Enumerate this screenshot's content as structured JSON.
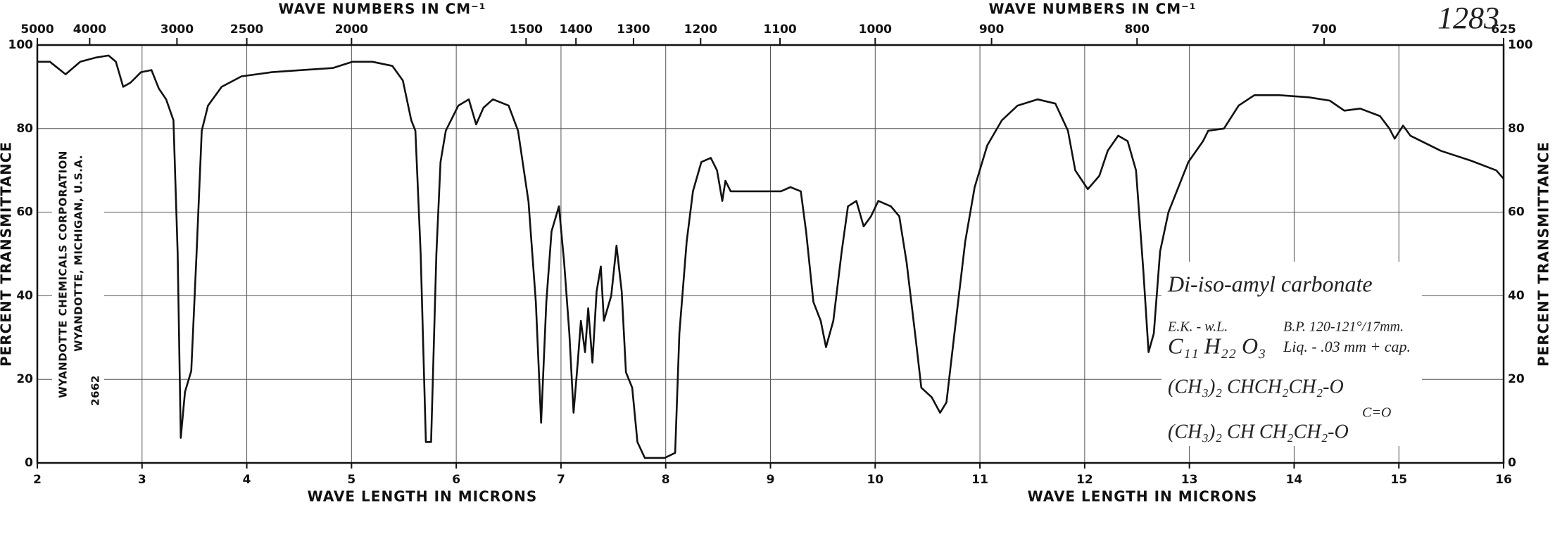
{
  "chart_data": {
    "type": "line",
    "x_label": "WAVE LENGTH IN MICRONS",
    "x2_label": "WAVE NUMBERS IN CM⁻¹",
    "y_label": "PERCENT TRANSMITTANCE",
    "xlim": [
      2,
      16
    ],
    "xticks": [
      2,
      3,
      4,
      5,
      6,
      7,
      8,
      9,
      10,
      11,
      12,
      13,
      14,
      15,
      16
    ],
    "x2lim": [
      5000,
      625
    ],
    "x2ticks": [
      5000,
      4000,
      3000,
      2500,
      2000,
      1500,
      1400,
      1300,
      1200,
      1100,
      1000,
      900,
      800,
      700,
      625
    ],
    "ylim": [
      0,
      100
    ],
    "yticks": [
      0,
      20,
      40,
      60,
      80,
      100
    ],
    "grid": true,
    "color": "#111111",
    "x": [
      2.0,
      2.12,
      2.27,
      2.41,
      2.56,
      2.68,
      2.75,
      2.82,
      2.89,
      2.99,
      3.09,
      3.16,
      3.23,
      3.3,
      3.34,
      3.37,
      3.41,
      3.47,
      3.52,
      3.57,
      3.63,
      3.76,
      3.95,
      4.24,
      4.53,
      4.82,
      5.01,
      5.2,
      5.39,
      5.49,
      5.57,
      5.61,
      5.66,
      5.71,
      5.76,
      5.81,
      5.85,
      5.9,
      6.02,
      6.12,
      6.19,
      6.26,
      6.35,
      6.5,
      6.59,
      6.69,
      6.76,
      6.81,
      6.86,
      6.91,
      6.98,
      7.03,
      7.08,
      7.12,
      7.16,
      7.19,
      7.23,
      7.26,
      7.3,
      7.34,
      7.38,
      7.41,
      7.48,
      7.53,
      7.58,
      7.62,
      7.68,
      7.73,
      7.8,
      7.99,
      8.09,
      8.13,
      8.2,
      8.26,
      8.34,
      8.43,
      8.49,
      8.54,
      8.57,
      8.62,
      8.72,
      8.96,
      9.1,
      9.19,
      9.29,
      9.34,
      9.41,
      9.48,
      9.53,
      9.6,
      9.68,
      9.74,
      9.82,
      9.89,
      9.96,
      10.03,
      10.15,
      10.23,
      10.3,
      10.39,
      10.44,
      10.54,
      10.62,
      10.68,
      10.78,
      10.86,
      10.95,
      11.07,
      11.21,
      11.36,
      11.55,
      11.72,
      11.84,
      11.91,
      12.03,
      12.14,
      12.22,
      12.32,
      12.41,
      12.49,
      12.56,
      12.61,
      12.66,
      12.72,
      12.8,
      12.99,
      13.13,
      13.18,
      13.33,
      13.47,
      13.62,
      13.86,
      14.14,
      14.34,
      14.48,
      14.63,
      14.82,
      14.91,
      14.96,
      15.04,
      15.11,
      15.4,
      15.69,
      15.93,
      16.0
    ],
    "values": [
      96,
      96,
      93,
      96,
      97,
      97.5,
      96,
      90,
      91,
      93.5,
      94,
      89.6,
      87,
      82,
      50,
      6,
      17,
      22,
      50,
      79.5,
      85.5,
      90,
      92.5,
      93.5,
      94,
      94.5,
      96,
      96,
      95,
      91.5,
      82,
      79.5,
      50,
      5,
      5,
      50,
      72,
      79.5,
      85.5,
      87,
      81,
      85,
      87,
      85.5,
      79.5,
      62.5,
      38.5,
      9.6,
      38.5,
      55.4,
      61.4,
      48,
      31,
      12,
      24,
      34,
      26.5,
      37,
      24,
      41,
      47,
      34,
      40,
      52,
      41,
      21.7,
      18,
      5,
      1.2,
      1.2,
      2.4,
      31,
      53,
      65,
      72,
      73,
      70,
      62.7,
      67.5,
      65,
      65,
      65,
      65,
      66,
      65,
      55.4,
      38.5,
      34,
      27.7,
      34,
      50.6,
      61.4,
      62.7,
      56.6,
      59,
      62.7,
      61.4,
      59,
      48,
      29,
      18,
      15.7,
      12,
      14.5,
      36,
      53,
      66,
      76,
      82,
      85.5,
      87,
      86,
      79.5,
      70,
      65.5,
      68.7,
      74.7,
      78.3,
      77,
      70,
      46,
      26.5,
      31,
      50.6,
      60,
      72,
      77,
      79.5,
      80,
      85.5,
      88,
      88,
      87.5,
      86.7,
      84.3,
      84.8,
      83,
      80,
      77.6,
      80.7,
      78.3,
      74.7,
      72.3,
      70,
      68
    ],
    "annotations": {
      "number": "1283",
      "company": "WYANDOTTE CHEMICALS CORPORATION",
      "company_address": "WYANDOTTE, MICHIGAN, U.S.A.",
      "chart_number": "2662",
      "compound": "Di-iso-amyl carbonate",
      "source": "E.K. - w.L.",
      "boiling_point": "B.P. 120-121°/17mm.",
      "formula": "C₁₁ H₂₂ O₃",
      "sample": "Liq. - .03 mm + cap.",
      "structure_line1": "(CH₃)₂ CHCH₂CH₂-O",
      "structure_carbonyl": "C=O",
      "structure_line2": "(CH₃)₂ CH CH₂CH₂-O"
    }
  }
}
